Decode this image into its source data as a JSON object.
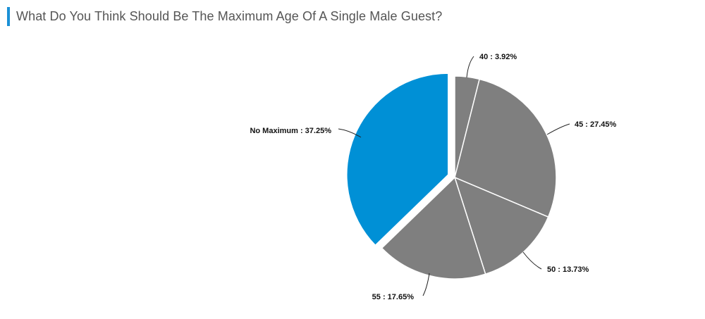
{
  "chart_data": {
    "type": "pie",
    "title": "What Do You Think Should Be The Maximum Age Of A Single Male Guest?",
    "slices": [
      {
        "label": "40",
        "value": 3.92,
        "text": "40 : 3.92%",
        "color": "#7f7f7f"
      },
      {
        "label": "45",
        "value": 27.45,
        "text": "45 : 27.45%",
        "color": "#7f7f7f"
      },
      {
        "label": "50",
        "value": 13.73,
        "text": "50 : 13.73%",
        "color": "#7f7f7f"
      },
      {
        "label": "55",
        "value": 17.65,
        "text": "55 : 17.65%",
        "color": "#7f7f7f"
      },
      {
        "label": "No Maximum",
        "value": 37.25,
        "text": "No Maximum : 37.25%",
        "color": "#0090d6",
        "exploded": true
      }
    ],
    "accent_color": "#1a90d6"
  }
}
